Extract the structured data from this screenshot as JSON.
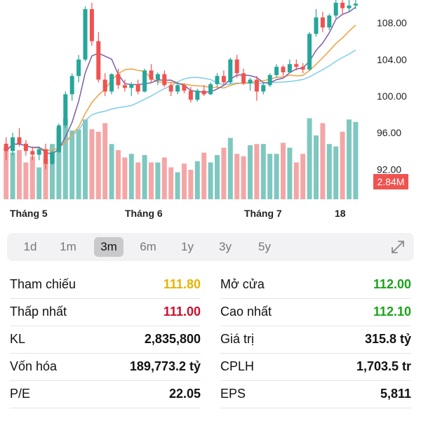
{
  "chart_data": {
    "type": "candlestick",
    "y_ticks": [
      "108.00",
      "104.00",
      "100.00",
      "96.00",
      "92.00"
    ],
    "ylim": [
      88.5,
      110.5
    ],
    "x_tick_labels": [
      "Tháng 5",
      "Tháng 6",
      "Tháng 7",
      "18"
    ],
    "volume_badge": "2.84M",
    "colors": {
      "up": "#26a69a",
      "down": "#ef5350",
      "ma_purple": "#7b5ea7",
      "ma_orange": "#f0a040",
      "ma_blue": "#7fcde9"
    },
    "candles": [
      [
        94.8,
        95.5,
        93.0,
        94.0
      ],
      [
        94.0,
        96.0,
        93.5,
        95.5
      ],
      [
        95.5,
        96.5,
        94.5,
        94.8
      ],
      [
        94.8,
        95.2,
        93.5,
        94.0
      ],
      [
        94.0,
        94.5,
        93.0,
        93.6
      ],
      [
        93.6,
        94.5,
        93.0,
        94.2
      ],
      [
        94.2,
        94.8,
        92.0,
        92.6
      ],
      [
        92.6,
        94.0,
        92.5,
        93.9
      ],
      [
        93.9,
        97.0,
        93.8,
        96.8
      ],
      [
        96.8,
        100.5,
        96.5,
        100.2
      ],
      [
        100.2,
        102.5,
        99.5,
        102.2
      ],
      [
        102.2,
        104.5,
        101.5,
        104.0
      ],
      [
        104.0,
        109.8,
        103.8,
        109.5
      ],
      [
        109.5,
        110.2,
        105.5,
        106.0
      ],
      [
        106.0,
        107.0,
        101.5,
        101.8
      ],
      [
        101.8,
        102.5,
        100.0,
        100.5
      ],
      [
        100.5,
        102.5,
        100.2,
        102.4
      ],
      [
        102.4,
        103.0,
        100.8,
        101.2
      ],
      [
        101.2,
        101.8,
        100.5,
        100.9
      ],
      [
        100.9,
        101.5,
        100.0,
        101.3
      ],
      [
        101.3,
        101.8,
        100.2,
        100.5
      ],
      [
        100.5,
        103.0,
        100.4,
        102.8
      ],
      [
        102.8,
        103.5,
        101.5,
        101.8
      ],
      [
        101.8,
        102.6,
        101.2,
        102.4
      ],
      [
        102.4,
        102.8,
        101.0,
        101.2
      ],
      [
        101.2,
        101.5,
        100.0,
        100.5
      ],
      [
        100.5,
        101.5,
        100.2,
        101.2
      ],
      [
        101.2,
        101.4,
        100.3,
        100.6
      ],
      [
        100.6,
        101.0,
        99.3,
        99.6
      ],
      [
        99.6,
        100.8,
        99.4,
        100.6
      ],
      [
        100.6,
        101.2,
        100.0,
        100.2
      ],
      [
        100.2,
        101.5,
        100.1,
        101.3
      ],
      [
        101.3,
        102.5,
        101.0,
        102.2
      ],
      [
        102.2,
        102.8,
        101.2,
        101.5
      ],
      [
        101.5,
        104.2,
        101.3,
        104.0
      ],
      [
        104.0,
        104.5,
        102.0,
        102.5
      ],
      [
        102.5,
        103.0,
        101.2,
        101.4
      ],
      [
        101.4,
        102.0,
        100.6,
        101.8
      ],
      [
        101.8,
        102.2,
        99.5,
        100.5
      ],
      [
        100.5,
        101.5,
        100.2,
        101.2
      ],
      [
        101.2,
        102.5,
        101.0,
        102.3
      ],
      [
        102.3,
        103.5,
        102.0,
        103.2
      ],
      [
        103.2,
        103.4,
        102.2,
        102.6
      ],
      [
        102.6,
        104.0,
        102.5,
        103.5
      ],
      [
        103.5,
        104.0,
        102.8,
        103.2
      ],
      [
        103.2,
        103.6,
        102.5,
        102.9
      ],
      [
        102.9,
        107.0,
        102.8,
        106.8
      ],
      [
        106.8,
        109.5,
        106.5,
        108.6
      ],
      [
        108.6,
        109.2,
        107.0,
        107.5
      ],
      [
        107.5,
        109.0,
        107.2,
        108.8
      ],
      [
        108.8,
        110.8,
        108.5,
        110.2
      ],
      [
        110.2,
        110.8,
        109.0,
        109.6
      ],
      [
        109.6,
        110.6,
        109.2,
        109.9
      ],
      [
        109.9,
        110.8,
        109.5,
        110.1
      ]
    ],
    "volumes": [
      4.2,
      3.8,
      4.0,
      3.0,
      3.5,
      2.6,
      3.3,
      4.5,
      5.8,
      6.6,
      5.6,
      5.7,
      6.5,
      5.7,
      5.5,
      6.2,
      4.5,
      4.0,
      3.4,
      3.7,
      3.0,
      3.6,
      3.0,
      3.0,
      3.4,
      2.6,
      2.2,
      2.9,
      2.4,
      3.1,
      3.8,
      3.0,
      3.6,
      4.2,
      5.0,
      3.7,
      3.5,
      4.4,
      4.5,
      4.5,
      3.7,
      3.7,
      4.6,
      4.2,
      3.0,
      3.7,
      6.6,
      5.2,
      6.2,
      4.5,
      4.3,
      5.5,
      6.5,
      6.3
    ]
  },
  "range_tabs": [
    {
      "label": "1d",
      "active": false
    },
    {
      "label": "1m",
      "active": false
    },
    {
      "label": "3m",
      "active": true
    },
    {
      "label": "6m",
      "active": false
    },
    {
      "label": "1y",
      "active": false
    },
    {
      "label": "3y",
      "active": false
    },
    {
      "label": "5y",
      "active": false
    }
  ],
  "stats_left": [
    {
      "label": "Tham chiếu",
      "value": "111.80",
      "color": "#e8b400"
    },
    {
      "label": "Thấp nhất",
      "value": "111.00",
      "color": "#c8102e"
    },
    {
      "label": "KL",
      "value": "2,835,800",
      "color": "#111111"
    },
    {
      "label": "Vốn hóa",
      "value": "189,773.2 tỷ",
      "color": "#111111"
    },
    {
      "label": "P/E",
      "value": "22.05",
      "color": "#111111"
    }
  ],
  "stats_right": [
    {
      "label": "Mở cửa",
      "value": "112.00",
      "color": "#1aa31a"
    },
    {
      "label": "Cao nhất",
      "value": "112.10",
      "color": "#1aa31a"
    },
    {
      "label": "Giá trị",
      "value": "315.8 tỷ",
      "color": "#111111"
    },
    {
      "label": "CPLH",
      "value": "1,703.5 tr",
      "color": "#111111"
    },
    {
      "label": "EPS",
      "value": "5,811",
      "color": "#111111"
    }
  ]
}
